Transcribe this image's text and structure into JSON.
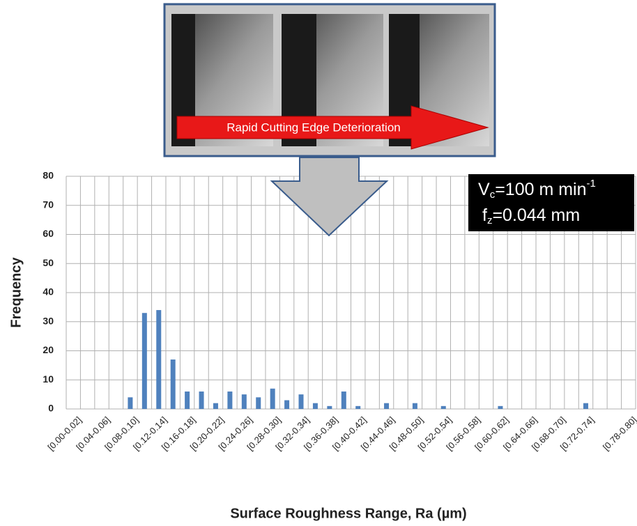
{
  "chart_data": {
    "type": "bar",
    "banner": "Rapid Cutting Edge Deterioration",
    "annotation": {
      "line1": [
        "V",
        "c",
        "=100 m min",
        "-1"
      ],
      "line2": [
        "f",
        "z",
        "=0.044 mm"
      ]
    },
    "x_label": "Surface Roughness Range, Ra (µm)",
    "y_label": "Frequency",
    "categories": [
      "[0.00-0.02]",
      null,
      "[0.04-0.06]",
      null,
      "[0.08-0.10]",
      null,
      "[0.12-0.14]",
      null,
      "[0.16-0.18]",
      null,
      "[0.20-0.22]",
      null,
      "[0.24-0.26]",
      null,
      "[0.28-0.30]",
      null,
      "[0.32-0.34]",
      null,
      "[0.36-0.38]",
      null,
      "[0.40-0.42]",
      null,
      "[0.44-0.46]",
      null,
      "[0.48-0.50]",
      null,
      "[0.52-0.54]",
      null,
      "[0.56-0.58]",
      null,
      "[0.60-0.62]",
      null,
      "[0.64-0.66]",
      null,
      "[0.68-0.70]",
      null,
      "[0.72-0.74]",
      null,
      null,
      "[0.78-0.80]"
    ],
    "values": [
      0,
      0,
      0,
      0,
      4,
      33,
      34,
      17,
      6,
      6,
      2,
      6,
      5,
      4,
      7,
      3,
      5,
      2,
      1,
      6,
      1,
      0,
      2,
      0,
      2,
      0,
      1,
      0,
      0,
      0,
      1,
      0,
      0,
      0,
      0,
      0,
      2,
      0,
      0,
      0
    ],
    "color": "#4f81bd",
    "ylim": [
      0,
      80
    ],
    "yticks": [
      0,
      10,
      20,
      30,
      40,
      50,
      60,
      70,
      80
    ],
    "grid": true
  }
}
